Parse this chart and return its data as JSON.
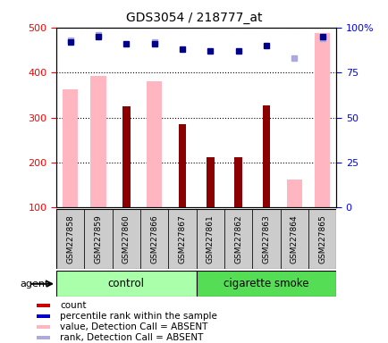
{
  "title": "GDS3054 / 218777_at",
  "samples": [
    "GSM227858",
    "GSM227859",
    "GSM227860",
    "GSM227866",
    "GSM227867",
    "GSM227861",
    "GSM227862",
    "GSM227863",
    "GSM227864",
    "GSM227865"
  ],
  "count_values": [
    null,
    null,
    325,
    null,
    285,
    212,
    212,
    327,
    null,
    null
  ],
  "value_absent": [
    362,
    392,
    null,
    381,
    null,
    null,
    null,
    null,
    162,
    487
  ],
  "percentile_rank": [
    92,
    95,
    91,
    91,
    88,
    87,
    87,
    90,
    null,
    95
  ],
  "rank_absent": [
    93,
    96,
    null,
    92,
    null,
    null,
    null,
    null,
    83,
    94
  ],
  "n_control": 5,
  "n_smoke": 5,
  "control_label": "control",
  "smoke_label": "cigarette smoke",
  "agent_label": "agent",
  "ylim_left": [
    100,
    500
  ],
  "ylim_right": [
    0,
    100
  ],
  "yticks_left": [
    100,
    200,
    300,
    400,
    500
  ],
  "yticks_right": [
    0,
    25,
    50,
    75,
    100
  ],
  "bar_color_dark": "#8B0000",
  "bar_color_light": "#FFB6C1",
  "dot_color_dark": "#00008B",
  "dot_color_light": "#AAAADD",
  "control_bg_light": "#AAFFAA",
  "control_bg_dark": "#55DD55",
  "tick_label_bg": "#CCCCCC",
  "legend_items": [
    {
      "color": "#CC0000",
      "label": "count"
    },
    {
      "color": "#0000CC",
      "label": "percentile rank within the sample"
    },
    {
      "color": "#FFB6C1",
      "label": "value, Detection Call = ABSENT"
    },
    {
      "color": "#AAAADD",
      "label": "rank, Detection Call = ABSENT"
    }
  ]
}
